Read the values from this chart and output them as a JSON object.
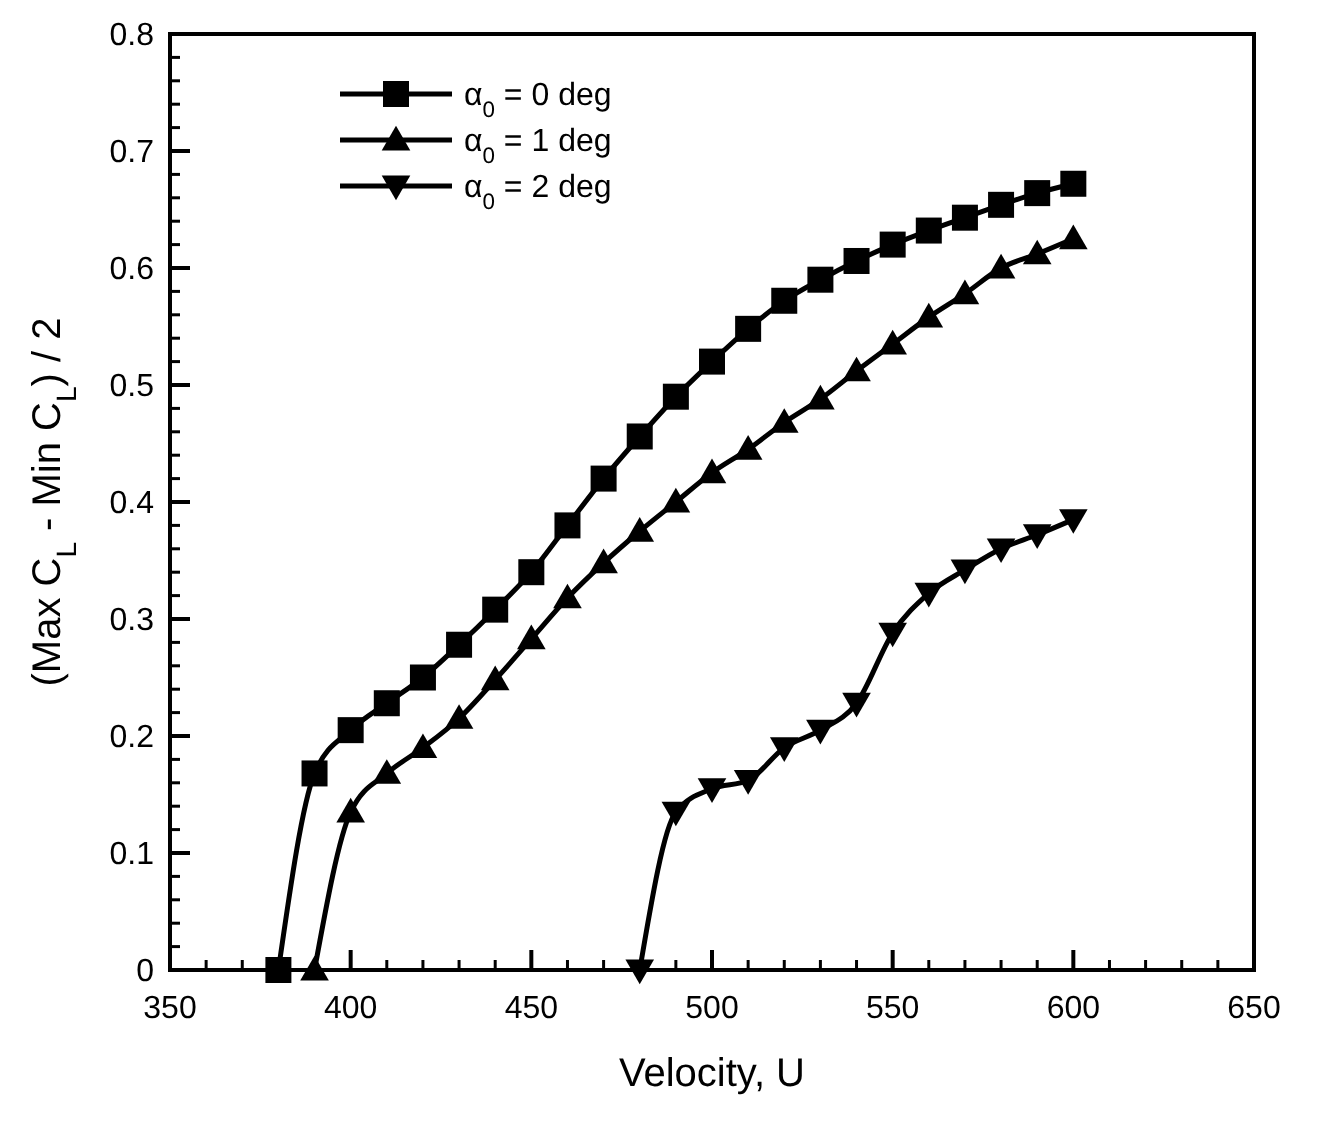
{
  "chart_data": {
    "type": "line",
    "xlabel": "Velocity, U",
    "ylabel": "(Max C$_{L}$ - Min C$_{L}$) / 2",
    "xlim": [
      350,
      650
    ],
    "xticks": [
      350,
      400,
      450,
      500,
      550,
      600,
      650
    ],
    "ylim": [
      0,
      0.8
    ],
    "yticks": [
      0,
      0.1,
      0.2,
      0.3,
      0.4,
      0.5,
      0.6,
      0.7,
      0.8
    ],
    "legend": "top left",
    "line_style": "solid",
    "series": [
      {
        "name": "α$_{0}$ = 0 deg",
        "color": "#000000",
        "marker": "square",
        "x": [
          380,
          390,
          400,
          410,
          420,
          430,
          440,
          450,
          460,
          470,
          480,
          490,
          500,
          510,
          520,
          530,
          540,
          550,
          560,
          570,
          580,
          590,
          600
        ],
        "values": [
          0,
          0.168,
          0.205,
          0.228,
          0.25,
          0.278,
          0.308,
          0.34,
          0.38,
          0.42,
          0.456,
          0.49,
          0.52,
          0.548,
          0.572,
          0.59,
          0.606,
          0.62,
          0.632,
          0.643,
          0.654,
          0.664,
          0.672
        ]
      },
      {
        "name": "α$_{0}$ = 1 deg",
        "color": "#000000",
        "marker": "triangle",
        "x": [
          390,
          400,
          410,
          420,
          430,
          440,
          450,
          460,
          470,
          480,
          490,
          500,
          510,
          520,
          530,
          540,
          550,
          560,
          570,
          580,
          590,
          600
        ],
        "values": [
          0,
          0.135,
          0.168,
          0.19,
          0.215,
          0.248,
          0.283,
          0.318,
          0.348,
          0.375,
          0.4,
          0.425,
          0.445,
          0.468,
          0.488,
          0.512,
          0.535,
          0.558,
          0.578,
          0.6,
          0.612,
          0.625
        ]
      },
      {
        "name": "α$_{0}$ = 2 deg",
        "color": "#000000",
        "marker": "triangle-down",
        "x": [
          480,
          490,
          500,
          510,
          520,
          530,
          540,
          550,
          560,
          570,
          580,
          590,
          600
        ],
        "values": [
          0,
          0.135,
          0.155,
          0.162,
          0.19,
          0.205,
          0.228,
          0.288,
          0.322,
          0.342,
          0.36,
          0.372,
          0.385
        ]
      }
    ]
  }
}
